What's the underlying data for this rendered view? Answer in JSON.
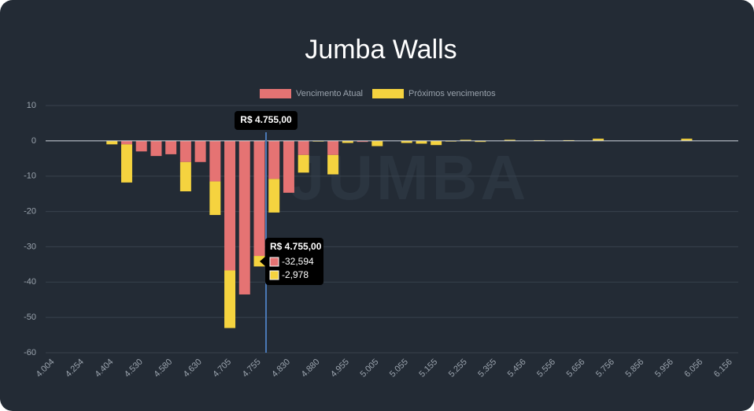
{
  "chart_data": {
    "type": "bar",
    "stacked": true,
    "title": "Jumba Walls",
    "watermark": "JUMBA",
    "categories": [
      "4.004",
      null,
      "4.254",
      null,
      "4.404",
      null,
      "4.530",
      null,
      "4.580",
      null,
      "4.630",
      null,
      "4.705",
      null,
      "4.755",
      null,
      "4.830",
      null,
      "4.880",
      null,
      "4.955",
      null,
      "5.005",
      null,
      "5.055",
      null,
      "5.155",
      null,
      "5.255",
      null,
      "5.355",
      null,
      "5.456",
      null,
      "5.556",
      null,
      "5.656",
      null,
      "5.756",
      null,
      "5.856",
      null,
      "5.956",
      null,
      "6.056",
      null,
      "6.156"
    ],
    "series": [
      {
        "name": "Vencimento Atual",
        "color": "#e57373",
        "values": [
          0,
          0,
          0,
          0,
          0,
          -1,
          -3,
          -4.3,
          -3.8,
          -6,
          -6,
          -11.5,
          -36.7,
          -43.5,
          -32.594,
          -10.8,
          -14.7,
          -4,
          0,
          -4,
          0,
          -0.3,
          0,
          0,
          0,
          0,
          0,
          0,
          0,
          0,
          0,
          0,
          0,
          0,
          0,
          0,
          0,
          0,
          0,
          0,
          0,
          0,
          0,
          0,
          0,
          0,
          0
        ]
      },
      {
        "name": "Próximos vencimentos",
        "color": "#f5d33f",
        "values": [
          0,
          0,
          0,
          0,
          -1,
          -10.8,
          0,
          0,
          0,
          -8.3,
          0,
          -9.5,
          -16.3,
          0,
          -2.978,
          -9.5,
          0,
          -5,
          -0.2,
          -5.5,
          -0.6,
          0,
          -1.5,
          0,
          -0.6,
          -0.8,
          -1.2,
          -0.2,
          0.3,
          -0.3,
          0,
          0.3,
          0,
          0.2,
          0,
          0.2,
          0,
          0.6,
          0,
          0,
          0,
          0,
          0,
          0.6,
          0,
          0,
          0
        ]
      }
    ],
    "ylim": [
      -60,
      10
    ],
    "yticks": [
      10,
      0,
      -10,
      -20,
      -30,
      -40,
      -50,
      -60
    ],
    "grid": true,
    "legend": "top",
    "tooltip": {
      "title": "R$ 4.755,00",
      "values": [
        "-32,594",
        "-2,978"
      ]
    }
  }
}
